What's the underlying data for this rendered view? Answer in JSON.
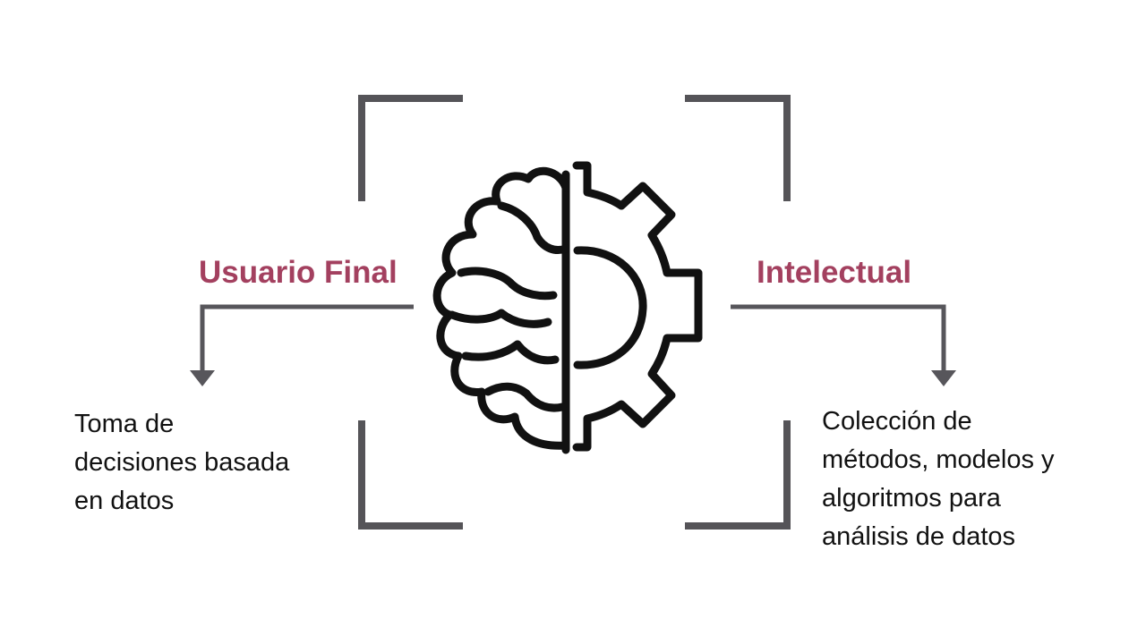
{
  "colors": {
    "accent": "#A3405F",
    "frame": "#555458",
    "arrow": "#57565B",
    "icon": "#111111"
  },
  "left": {
    "title": "Usuario Final",
    "description": "Toma de\ndecisiones basada\nen datos"
  },
  "right": {
    "title": "Intelectual",
    "description": "Colección de\nmétodos, modelos y\nalgoritmos para\nanálisis de datos"
  },
  "icons": {
    "center": "brain-gear-icon"
  }
}
